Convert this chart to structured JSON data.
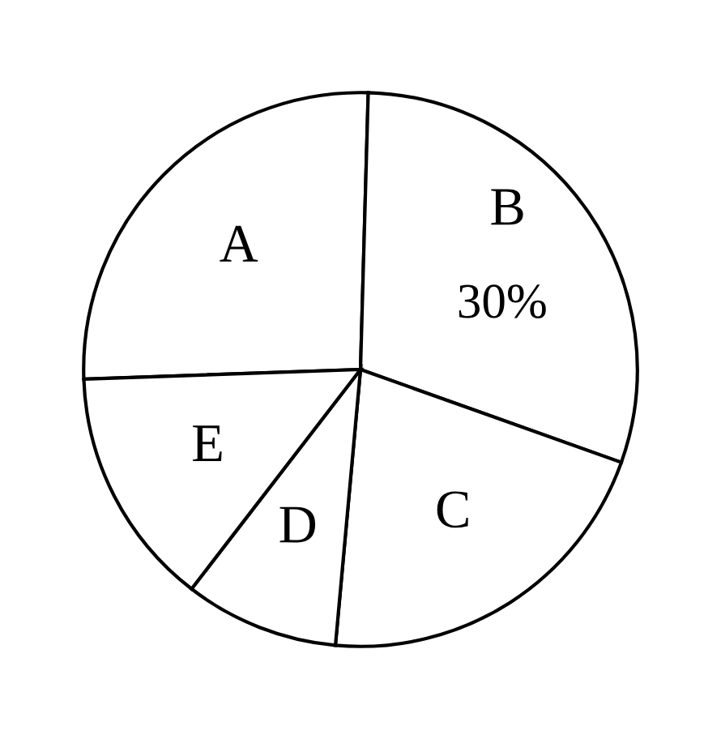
{
  "chart_data": {
    "type": "pie",
    "categories": [
      "A",
      "B",
      "C",
      "D",
      "E"
    ],
    "values": [
      26,
      30,
      21,
      9,
      14
    ],
    "value_labels": [
      null,
      "30%",
      null,
      null,
      null
    ],
    "colors": [
      "#ffffff",
      "#ffffff",
      "#ffffff",
      "#ffffff",
      "#ffffff"
    ]
  }
}
